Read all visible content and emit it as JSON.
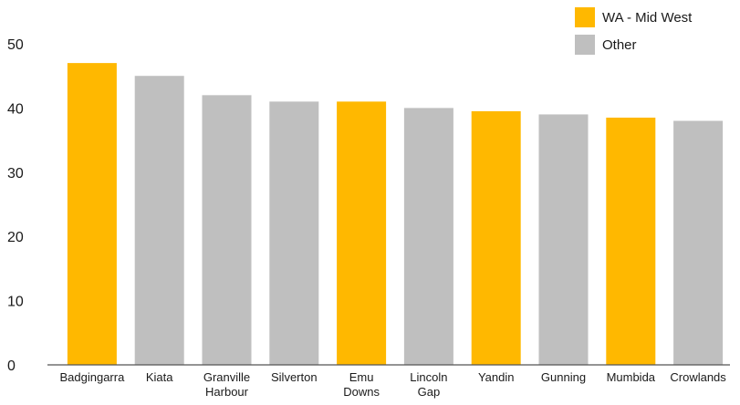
{
  "chart_data": {
    "type": "bar",
    "title": "",
    "xlabel": "",
    "ylabel": "",
    "ylim": [
      0,
      50
    ],
    "yticks": [
      0,
      10,
      20,
      30,
      40,
      50
    ],
    "grid": false,
    "legend_placement": "top-right",
    "categories": [
      [
        "Badgingarra"
      ],
      [
        "Kiata"
      ],
      [
        "Granville",
        "Harbour"
      ],
      [
        "Silverton"
      ],
      [
        "Emu",
        "Downs"
      ],
      [
        "Lincoln",
        "Gap"
      ],
      [
        "Yandin"
      ],
      [
        "Gunning"
      ],
      [
        "Mumbida"
      ],
      [
        "Crowlands"
      ]
    ],
    "values": [
      47,
      45,
      42,
      41,
      41,
      40,
      39.5,
      39,
      38.5,
      38
    ],
    "groups": [
      "WA - Mid West",
      "Other",
      "Other",
      "Other",
      "WA - Mid West",
      "Other",
      "WA - Mid West",
      "Other",
      "WA - Mid West",
      "Other"
    ],
    "legend": [
      {
        "label": "WA - Mid West",
        "color": "#FFB800"
      },
      {
        "label": "Other",
        "color": "#BFBFBF"
      }
    ]
  }
}
